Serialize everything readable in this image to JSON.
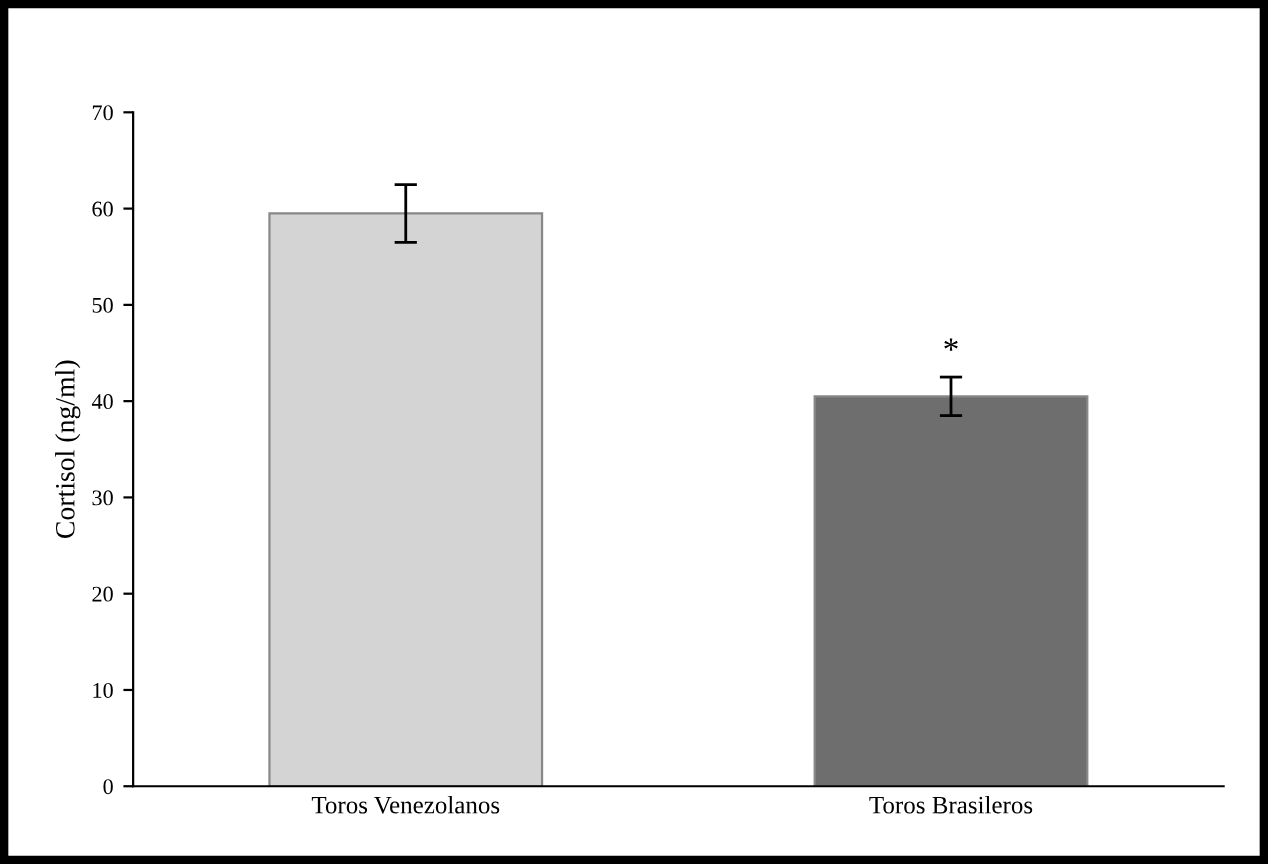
{
  "chart_data": {
    "type": "bar",
    "ylabel": "Cortisol (ng/ml)",
    "categories": [
      "Toros Venezolanos",
      "Toros Brasileros"
    ],
    "values": [
      59.5,
      40.5
    ],
    "colors": [
      "#d4d4d4",
      "#6e6e6e"
    ],
    "errors": [
      3,
      2
    ],
    "ylim": [
      0,
      70
    ],
    "yticks": [
      0,
      10,
      20,
      30,
      40,
      50,
      60,
      70
    ],
    "grid": false,
    "annotations": [
      {
        "text": "*",
        "x": "Toros Brasileros",
        "y": 43.5
      }
    ]
  }
}
